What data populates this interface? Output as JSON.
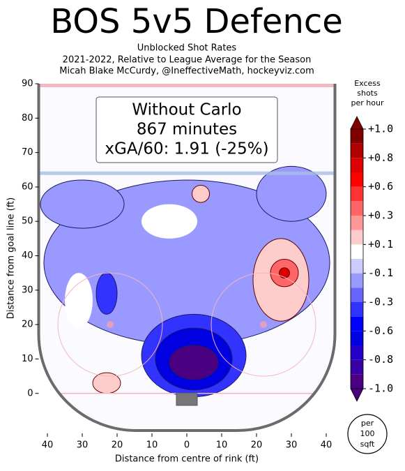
{
  "chart_data": {
    "type": "contour",
    "title": "BOS 5v5 Defence",
    "subtitle": [
      "Unblocked Shot Rates",
      "2021-2022, Relative to League Average for the Season",
      "Micah Blake McCurdy, @IneffectiveMath, hockeyviz.com"
    ],
    "annotation": [
      "Without Carlo",
      "867 minutes",
      "xGA/60: 1.91 (-25%)"
    ],
    "x_label": "Distance from centre of rink (ft)",
    "y_label": "Distance from goal line (ft)",
    "xlim": [
      -42.5,
      42.5
    ],
    "ylim": [
      -10.8,
      90
    ],
    "xticks": [
      {
        "value": -40,
        "label": "40"
      },
      {
        "value": -30,
        "label": "30"
      },
      {
        "value": -20,
        "label": "20"
      },
      {
        "value": -10,
        "label": "10"
      },
      0,
      {
        "value": 10,
        "label": "10"
      },
      {
        "value": 20,
        "label": "20"
      },
      {
        "value": 30,
        "label": "30"
      },
      {
        "value": 40,
        "label": "40"
      }
    ],
    "yticks": [
      0,
      10,
      20,
      30,
      40,
      50,
      60,
      70,
      80,
      90
    ],
    "colorbar_title": [
      "Excess",
      "shots",
      "per hour"
    ],
    "colorbar_ticks": [
      {
        "value": 1.0,
        "label": "+1.0"
      },
      {
        "value": 0.8,
        "label": "+0.8"
      },
      {
        "value": 0.6,
        "label": "+0.6"
      },
      {
        "value": 0.3,
        "label": "+0.3"
      },
      {
        "value": 0.1,
        "label": "+0.1"
      },
      {
        "value": -0.1,
        "label": "-0.1"
      },
      {
        "value": -0.3,
        "label": "-0.3"
      },
      {
        "value": -0.6,
        "label": "-0.6"
      },
      {
        "value": -0.8,
        "label": "-0.8"
      },
      {
        "value": -1.0,
        "label": "-1.0"
      }
    ],
    "levels": [
      -1.0,
      -0.9,
      -0.8,
      -0.7,
      -0.6,
      -0.45,
      -0.3,
      -0.2,
      -0.1,
      0,
      0.1,
      0.2,
      0.3,
      0.45,
      0.6,
      0.7,
      0.8,
      0.9,
      1.0
    ],
    "level_colors": [
      "#4b0082",
      "#3a00a8",
      "#2400c8",
      "#0000e0",
      "#0000ff",
      "#3333ff",
      "#6666ff",
      "#9999ff",
      "#ccccff",
      "#ffffff",
      "#ffcccc",
      "#ff9999",
      "#ff6666",
      "#ff3333",
      "#ff0000",
      "#dd0000",
      "#b00000",
      "#800000"
    ],
    "unit_label": [
      "per",
      "100",
      "sqft"
    ],
    "contours": [
      {
        "x": 0,
        "y": 38,
        "rx": 41,
        "ry": 24,
        "level": -0.15
      },
      {
        "x": -30,
        "y": 55,
        "rx": 12,
        "ry": 7,
        "level": -0.15
      },
      {
        "x": 30,
        "y": 58,
        "rx": 10,
        "ry": 8,
        "level": -0.15
      },
      {
        "x": -5,
        "y": 50,
        "rx": 8,
        "ry": 5,
        "level": 0
      },
      {
        "x": -31,
        "y": 27,
        "rx": 4,
        "ry": 8,
        "level": 0
      },
      {
        "x": 27,
        "y": 33,
        "rx": 8,
        "ry": 12,
        "level": 0.15
      },
      {
        "x": 28,
        "y": 35,
        "rx": 4,
        "ry": 4,
        "level": 0.35
      },
      {
        "x": 28,
        "y": 35,
        "rx": 1.5,
        "ry": 1.5,
        "level": 0.7
      },
      {
        "x": 4,
        "y": 58,
        "rx": 2.5,
        "ry": 2.5,
        "level": 0.15
      },
      {
        "x": -23,
        "y": 3,
        "rx": 4,
        "ry": 3,
        "level": 0.15
      },
      {
        "x": -23,
        "y": 29,
        "rx": 3,
        "ry": 6,
        "level": -0.35
      },
      {
        "x": 2,
        "y": 11,
        "rx": 15,
        "ry": 12,
        "level": -0.35
      },
      {
        "x": 2,
        "y": 10,
        "rx": 11,
        "ry": 9,
        "level": -0.65
      },
      {
        "x": 2,
        "y": 9,
        "rx": 7,
        "ry": 5,
        "level": -0.95
      }
    ]
  }
}
